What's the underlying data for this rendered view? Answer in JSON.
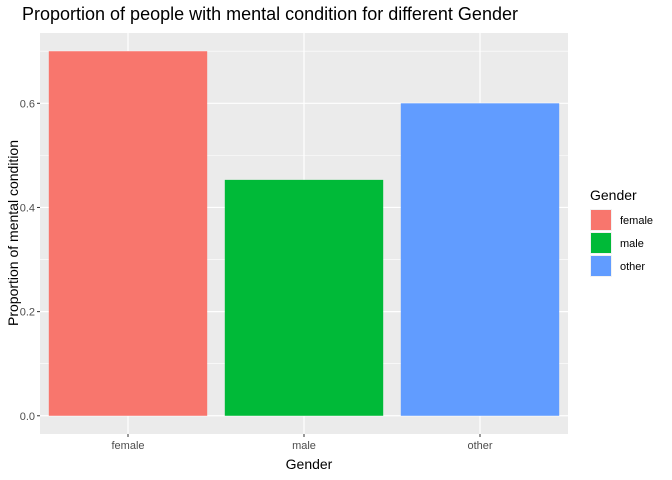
{
  "chart_data": {
    "type": "bar",
    "title": "Proportion of people with mental condition for different Gender",
    "xlabel": "Gender",
    "ylabel": "Proportion of mental condition",
    "categories": [
      "female",
      "male",
      "other"
    ],
    "values": [
      0.7,
      0.453,
      0.6
    ],
    "colors": [
      "#F8766D",
      "#00BA38",
      "#619CFF"
    ],
    "ylim": [
      -0.035,
      0.735
    ],
    "yticks": [
      0.0,
      0.2,
      0.4,
      0.6
    ],
    "ytick_labels": [
      "0.0",
      "0.2",
      "0.4",
      "0.6"
    ],
    "grid": true,
    "panel_background": "#EBEBEB",
    "legend": {
      "title": "Gender",
      "position": "right",
      "entries": [
        "female",
        "male",
        "other"
      ]
    }
  }
}
